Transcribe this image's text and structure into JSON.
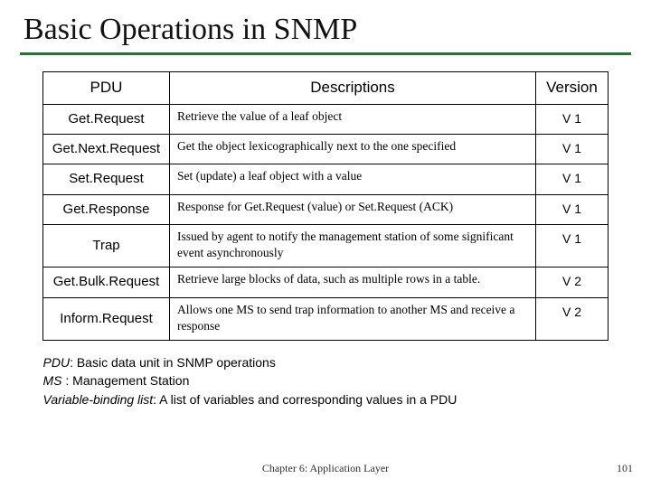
{
  "title": "Basic Operations in SNMP",
  "table": {
    "headers": {
      "pdu": "PDU",
      "desc": "Descriptions",
      "ver": "Version"
    },
    "rows": [
      {
        "pdu": "Get.Request",
        "desc": "Retrieve the value of a leaf object",
        "ver": "V 1"
      },
      {
        "pdu": "Get.Next.Request",
        "desc": "Get the object lexicographically next to the one specified",
        "ver": "V 1"
      },
      {
        "pdu": "Set.Request",
        "desc": "Set (update) a leaf object with a value",
        "ver": "V 1"
      },
      {
        "pdu": "Get.Response",
        "desc": "Response for Get.Request (value) or Set.Request (ACK)",
        "ver": "V 1"
      },
      {
        "pdu": "Trap",
        "desc": "Issued by agent to notify the management station of some significant event asynchronously",
        "ver": "V 1"
      },
      {
        "pdu": "Get.Bulk.Request",
        "desc": "Retrieve large blocks of data, such as multiple rows in a table.",
        "ver": "V 2"
      },
      {
        "pdu": "Inform.Request",
        "desc": "Allows one MS to send trap information to another MS and receive a response",
        "ver": "V 2"
      }
    ]
  },
  "notes": {
    "line1a": "PDU",
    "line1b": ": Basic data unit in SNMP operations",
    "line2a": "MS",
    "line2b": "  : Management Station",
    "line3a": "Variable-binding list",
    "line3b": ": A list of variables and corresponding values in a PDU"
  },
  "footer": "Chapter 6: Application Layer",
  "page": "101",
  "style": {
    "accent_color": "#2e6e3a",
    "background_color": "#ffffff"
  }
}
